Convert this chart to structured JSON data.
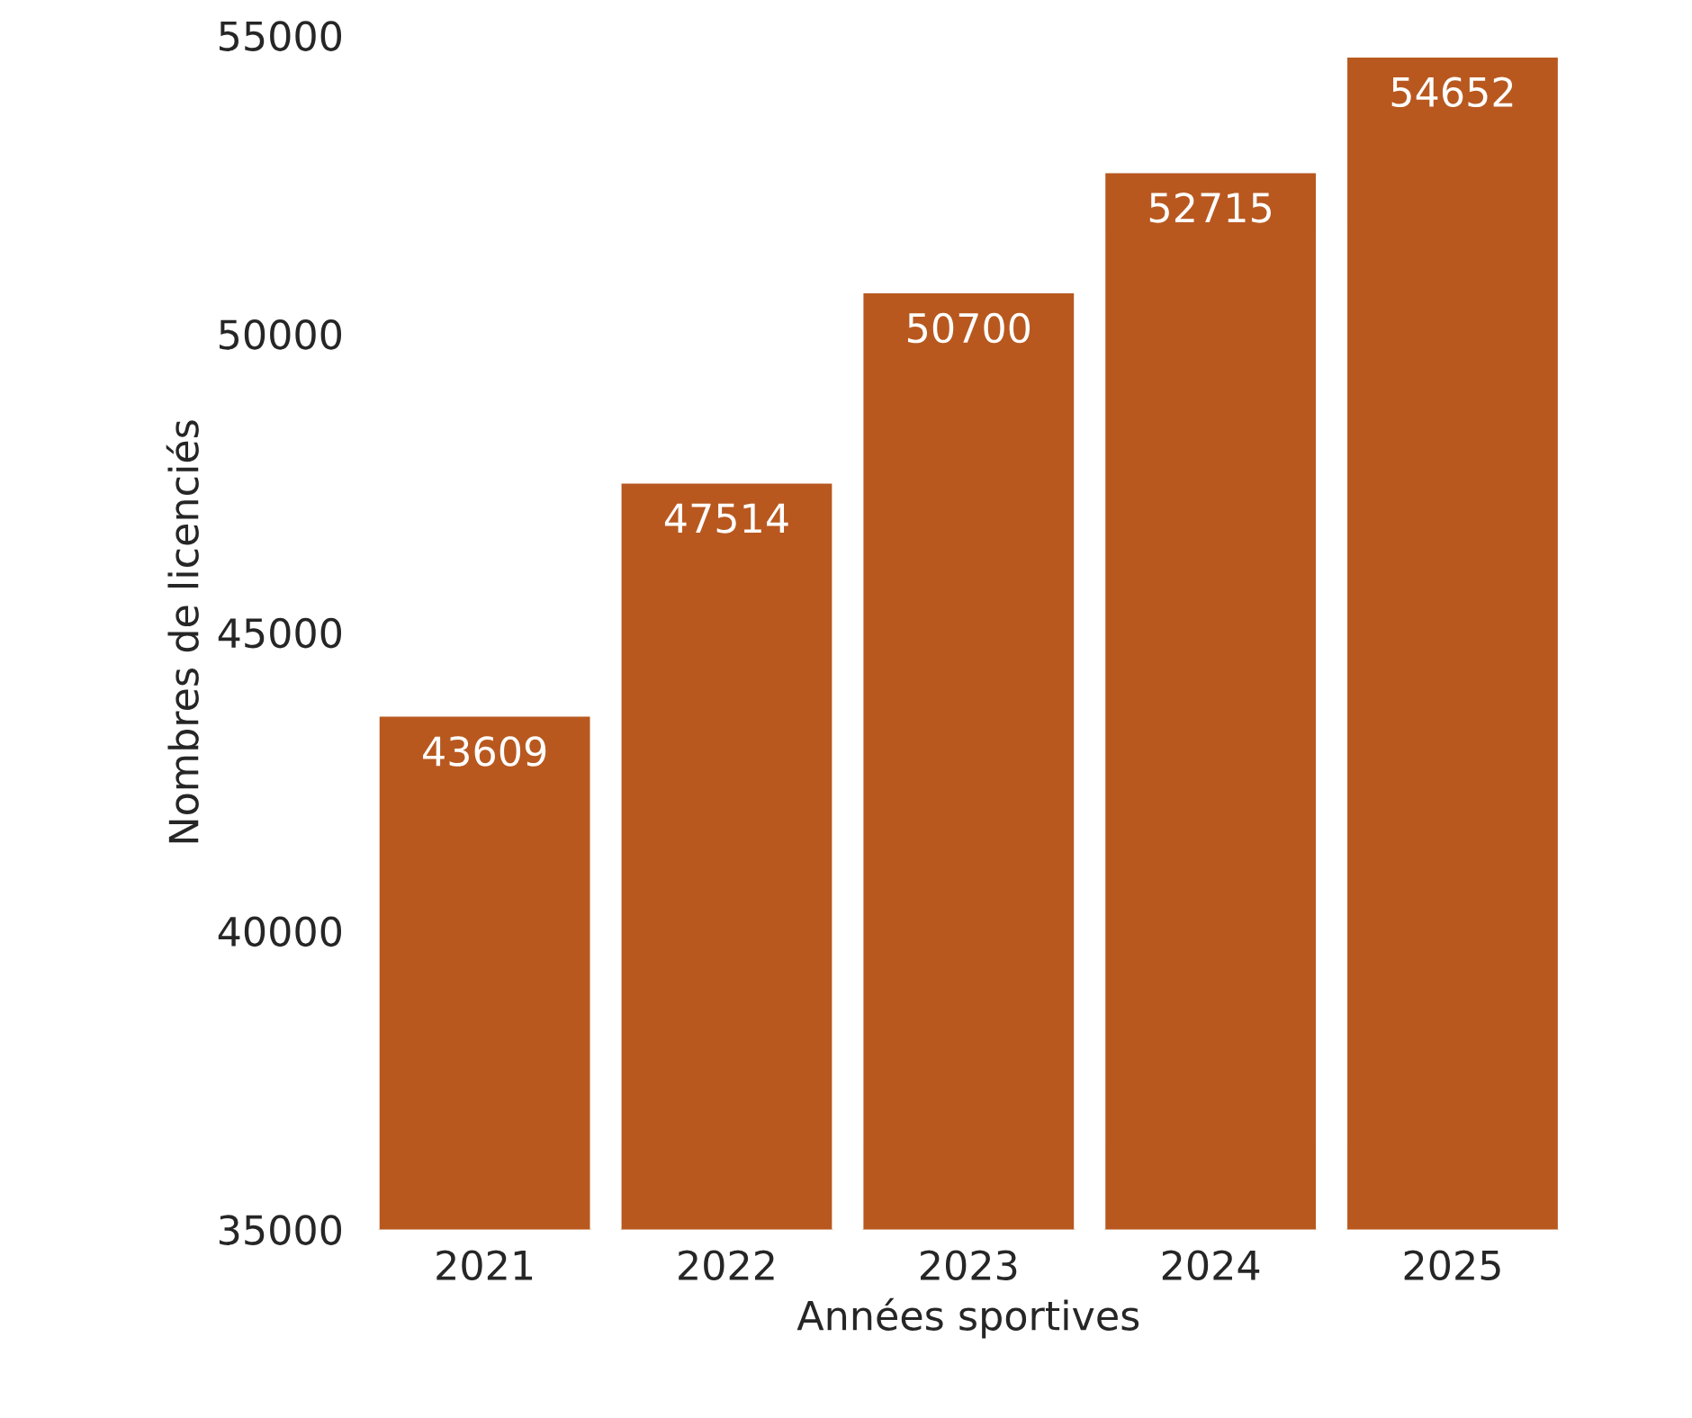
{
  "chart_data": {
    "type": "bar",
    "xlabel": "Années sportives",
    "ylabel": "Nombres de licenciés",
    "categories": [
      "2021",
      "2022",
      "2023",
      "2024",
      "2025"
    ],
    "values": [
      43609,
      47514,
      50700,
      52715,
      54652
    ],
    "color": "#b8581f",
    "ylim": [
      35000,
      55000
    ],
    "yticks": [
      35000,
      40000,
      45000,
      50000,
      55000
    ],
    "data_labels": true,
    "grid": false,
    "legend": false
  }
}
